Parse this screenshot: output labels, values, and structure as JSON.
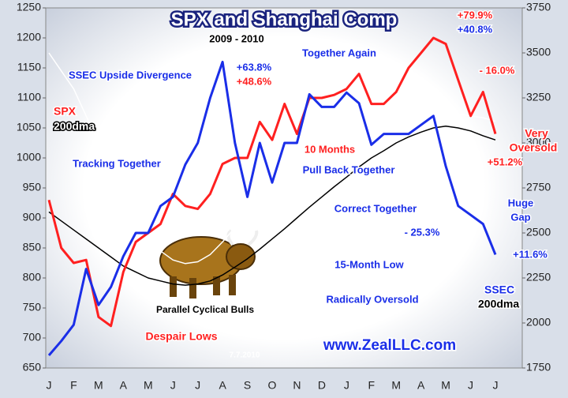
{
  "chart_data": {
    "type": "line",
    "title": "SPX and Shanghai Comp",
    "subtitle": "2009 - 2010",
    "categories": [
      "J",
      null,
      "F",
      null,
      "M",
      null,
      "A",
      null,
      "M",
      null,
      "J",
      null,
      "J",
      null,
      "A",
      null,
      "S",
      null,
      "O",
      null,
      "N",
      null,
      "D",
      null,
      "J",
      null,
      "F",
      null,
      "M",
      null,
      "A",
      null,
      "M",
      null,
      "J",
      null,
      "J"
    ],
    "series": [
      {
        "name": "SPX",
        "color": "#ff2020",
        "axis": "y",
        "values": [
          930,
          850,
          825,
          830,
          735,
          720,
          810,
          860,
          875,
          890,
          940,
          920,
          915,
          940,
          990,
          1000,
          1000,
          1060,
          1030,
          1090,
          1040,
          1100,
          1100,
          1105,
          1115,
          1140,
          1090,
          1090,
          1110,
          1150,
          1175,
          1200,
          1190,
          1130,
          1070,
          1110,
          1040
        ]
      },
      {
        "name": "SSEC",
        "color": "#1a2ee8",
        "axis": "y2",
        "values": [
          1820,
          1900,
          1990,
          2300,
          2100,
          2200,
          2370,
          2500,
          2500,
          2650,
          2700,
          2880,
          3000,
          3250,
          3450,
          3000,
          2700,
          3000,
          2780,
          3000,
          3000,
          3270,
          3200,
          3200,
          3280,
          3220,
          2990,
          3050,
          3050,
          3050,
          3100,
          3150,
          2870,
          2650,
          2600,
          2550,
          2380
        ]
      },
      {
        "name": "200dma",
        "color": "#000000",
        "axis": "y",
        "values": [
          910,
          895,
          880,
          865,
          850,
          835,
          820,
          810,
          800,
          795,
          790,
          788,
          790,
          795,
          805,
          818,
          832,
          848,
          865,
          882,
          900,
          918,
          935,
          952,
          968,
          985,
          1000,
          1012,
          1025,
          1035,
          1043,
          1050,
          1053,
          1050,
          1045,
          1037,
          1030
        ]
      },
      {
        "name": "200dma",
        "color": "#ffffff",
        "axis": "y2",
        "values": [
          3500,
          3400,
          3300,
          3150,
          3000,
          2850,
          2700,
          2580,
          2480,
          2400,
          2350,
          2330,
          2340,
          2380,
          2450,
          2530,
          2620,
          2710,
          2800,
          2880,
          2950,
          3010,
          3060,
          3100,
          3130,
          3150,
          3160,
          3165,
          3170,
          3175,
          3180,
          3180,
          3170,
          3160,
          3150,
          3140,
          3120
        ]
      }
    ],
    "ylim": [
      650,
      1250
    ],
    "yticks": [
      650,
      700,
      750,
      800,
      850,
      900,
      950,
      1000,
      1050,
      1100,
      1150,
      1200,
      1250
    ],
    "y2lim": [
      1750,
      3750
    ],
    "y2ticks": [
      1750,
      2000,
      2250,
      2500,
      2750,
      3000,
      3250,
      3500,
      3750
    ],
    "annotations": [
      "SSEC Upside Divergence",
      "+63.8%",
      "+48.6%",
      "Together Again",
      "+79.9%",
      "+40.8%",
      "- 16.0%",
      "Very",
      "Oversold",
      "10 Months",
      "Pull Back Together",
      "+51.2%",
      "Tracking Together",
      "Correct Together",
      "Huge",
      "Gap",
      "- 25.3%",
      "+11.6%",
      "15-Month Low",
      "Parallel Cyclical Bulls",
      "Radically Oversold",
      "Despair Lows",
      "www.ZealLLC.com",
      "7.7.2010"
    ]
  }
}
